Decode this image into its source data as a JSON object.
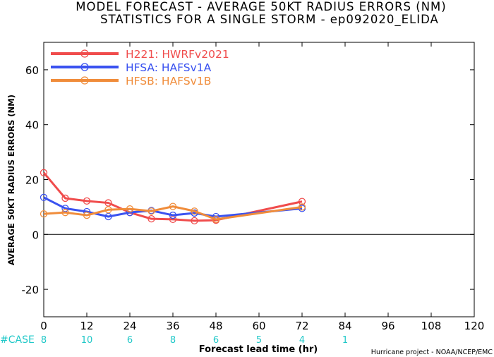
{
  "title_line1": "MODEL FORECAST - AVERAGE 50KT RADIUS ERRORS (NM)",
  "title_line2": "STATISTICS FOR A SINGLE STORM - ep092020_ELIDA",
  "colors": {
    "H221": "#f04c4c",
    "HFSA": "#3a52f0",
    "HFSB": "#f08c3a",
    "case": "#20c8c8",
    "axis": "#000000"
  },
  "chart_data": {
    "type": "line",
    "title": "MODEL FORECAST - AVERAGE 50KT RADIUS ERRORS (NM)",
    "subtitle": "STATISTICS FOR A SINGLE STORM - ep092020_ELIDA",
    "xlabel": "Forecast lead time (hr)",
    "ylabel": "AVERAGE 50KT RADIUS ERRORS (NM)",
    "xlim": [
      0,
      120
    ],
    "ylim": [
      -30,
      70
    ],
    "xticks": [
      0,
      12,
      24,
      36,
      48,
      60,
      72,
      84,
      96,
      108,
      120
    ],
    "yticks": [
      -20,
      0,
      20,
      40,
      60
    ],
    "grid": false,
    "legend_position": "top-left",
    "series": [
      {
        "name": "H221: HWRFv2021",
        "key": "H221",
        "x": [
          0,
          6,
          12,
          18,
          24,
          30,
          36,
          42,
          48,
          72
        ],
        "y": [
          22.5,
          13.2,
          12.2,
          11.5,
          8.0,
          5.7,
          5.5,
          5.0,
          5.2,
          12.0
        ]
      },
      {
        "name": "HFSA: HAFSv1A",
        "key": "HFSA",
        "x": [
          0,
          6,
          12,
          18,
          24,
          30,
          36,
          42,
          48,
          72
        ],
        "y": [
          13.5,
          9.5,
          8.3,
          6.5,
          8.0,
          8.7,
          7.0,
          7.8,
          6.5,
          9.5
        ]
      },
      {
        "name": "HFSB: HAFSv1B",
        "key": "HFSB",
        "x": [
          0,
          6,
          12,
          18,
          24,
          30,
          36,
          42,
          48,
          72
        ],
        "y": [
          7.5,
          8.0,
          7.0,
          9.0,
          9.3,
          8.5,
          10.2,
          8.5,
          5.5,
          10.0
        ]
      }
    ],
    "cases": {
      "label": "#CASE",
      "entries": [
        {
          "x": 0,
          "count": "8"
        },
        {
          "x": 12,
          "count": "10"
        },
        {
          "x": 24,
          "count": "6"
        },
        {
          "x": 36,
          "count": "8"
        },
        {
          "x": 48,
          "count": "6"
        },
        {
          "x": 60,
          "count": "5"
        },
        {
          "x": 72,
          "count": "4"
        },
        {
          "x": 84,
          "count": "1"
        }
      ]
    }
  },
  "footer": "Hurricane project - NOAA/NCEP/EMC"
}
